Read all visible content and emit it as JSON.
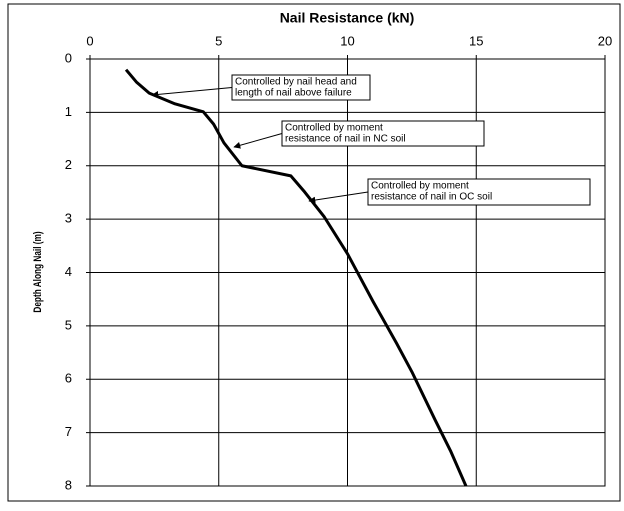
{
  "chart_data": {
    "type": "line",
    "title": "Nail Resistance (kN)",
    "y_label": "Depth Along Nail (m)",
    "x_axis_position": "top",
    "y_inverted": true,
    "grid": true,
    "xlim": [
      0,
      20
    ],
    "xticks": [
      0,
      5,
      10,
      15,
      20
    ],
    "ylim": [
      0,
      8
    ],
    "yticks": [
      0,
      1,
      2,
      3,
      4,
      5,
      6,
      7,
      8
    ],
    "series": [
      {
        "color": "#000000",
        "x": [
          1.4,
          1.8,
          2.3,
          3.3,
          4.4,
          4.8,
          5.2,
          5.9,
          7.8,
          8.3,
          9.1,
          10.0,
          11.0,
          11.9,
          12.5,
          13.4,
          14.0,
          14.6
        ],
        "values": [
          0.2,
          0.43,
          0.64,
          0.84,
          0.99,
          1.22,
          1.57,
          2.0,
          2.19,
          2.47,
          2.96,
          3.65,
          4.55,
          5.32,
          5.86,
          6.76,
          7.34,
          8.0
        ]
      }
    ],
    "annotations": [
      {
        "text": [
          "Controlled by nail head and",
          "length of nail above failure"
        ]
      },
      {
        "text": [
          "Controlled by moment",
          "resistance of nail in NC soil"
        ]
      },
      {
        "text": [
          "Controlled by moment",
          "resistance of nail in OC soil"
        ]
      }
    ]
  }
}
